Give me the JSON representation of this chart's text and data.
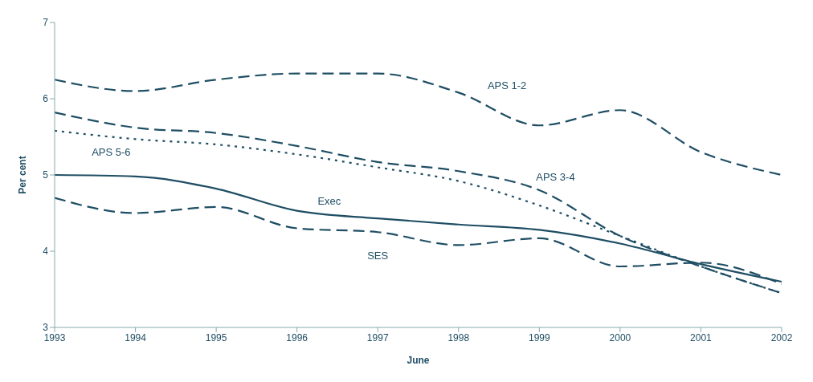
{
  "chart_data": {
    "type": "line",
    "xlabel": "June",
    "ylabel": "Per cent",
    "x": [
      1993,
      1994,
      1995,
      1996,
      1997,
      1998,
      1999,
      2000,
      2001,
      2002
    ],
    "xlim": [
      1993,
      2002
    ],
    "xticks": [
      1993,
      1994,
      1995,
      1996,
      1997,
      1998,
      1999,
      2000,
      2001,
      2002
    ],
    "ylim": [
      3,
      7
    ],
    "yticks": [
      3,
      4,
      5,
      6,
      7
    ],
    "grid": false,
    "legend": false,
    "marker": "none",
    "series": [
      {
        "name": "APS 1-2",
        "color": "#1f4e64",
        "line_style": "dashed",
        "values": [
          6.25,
          6.1,
          6.25,
          6.33,
          6.33,
          6.08,
          5.65,
          5.85,
          5.3,
          5.0
        ]
      },
      {
        "name": "APS 3-4",
        "color": "#1f4e64",
        "line_style": "dashed",
        "values": [
          5.82,
          5.62,
          5.55,
          5.38,
          5.17,
          5.05,
          4.8,
          4.2,
          3.8,
          3.45
        ]
      },
      {
        "name": "APS 5-6",
        "color": "#1f4e64",
        "line_style": "dotted",
        "values": [
          5.58,
          5.47,
          5.4,
          5.27,
          5.1,
          4.92,
          4.6,
          4.2,
          3.8,
          3.45
        ]
      },
      {
        "name": "Exec",
        "color": "#1f4e64",
        "line_style": "solid",
        "values": [
          5.0,
          4.98,
          4.82,
          4.53,
          4.43,
          4.35,
          4.28,
          4.1,
          3.83,
          3.6
        ]
      },
      {
        "name": "SES",
        "color": "#1f4e64",
        "line_style": "dashed",
        "values": [
          4.7,
          4.5,
          4.58,
          4.3,
          4.25,
          4.08,
          4.17,
          3.8,
          3.85,
          3.57
        ]
      }
    ]
  }
}
